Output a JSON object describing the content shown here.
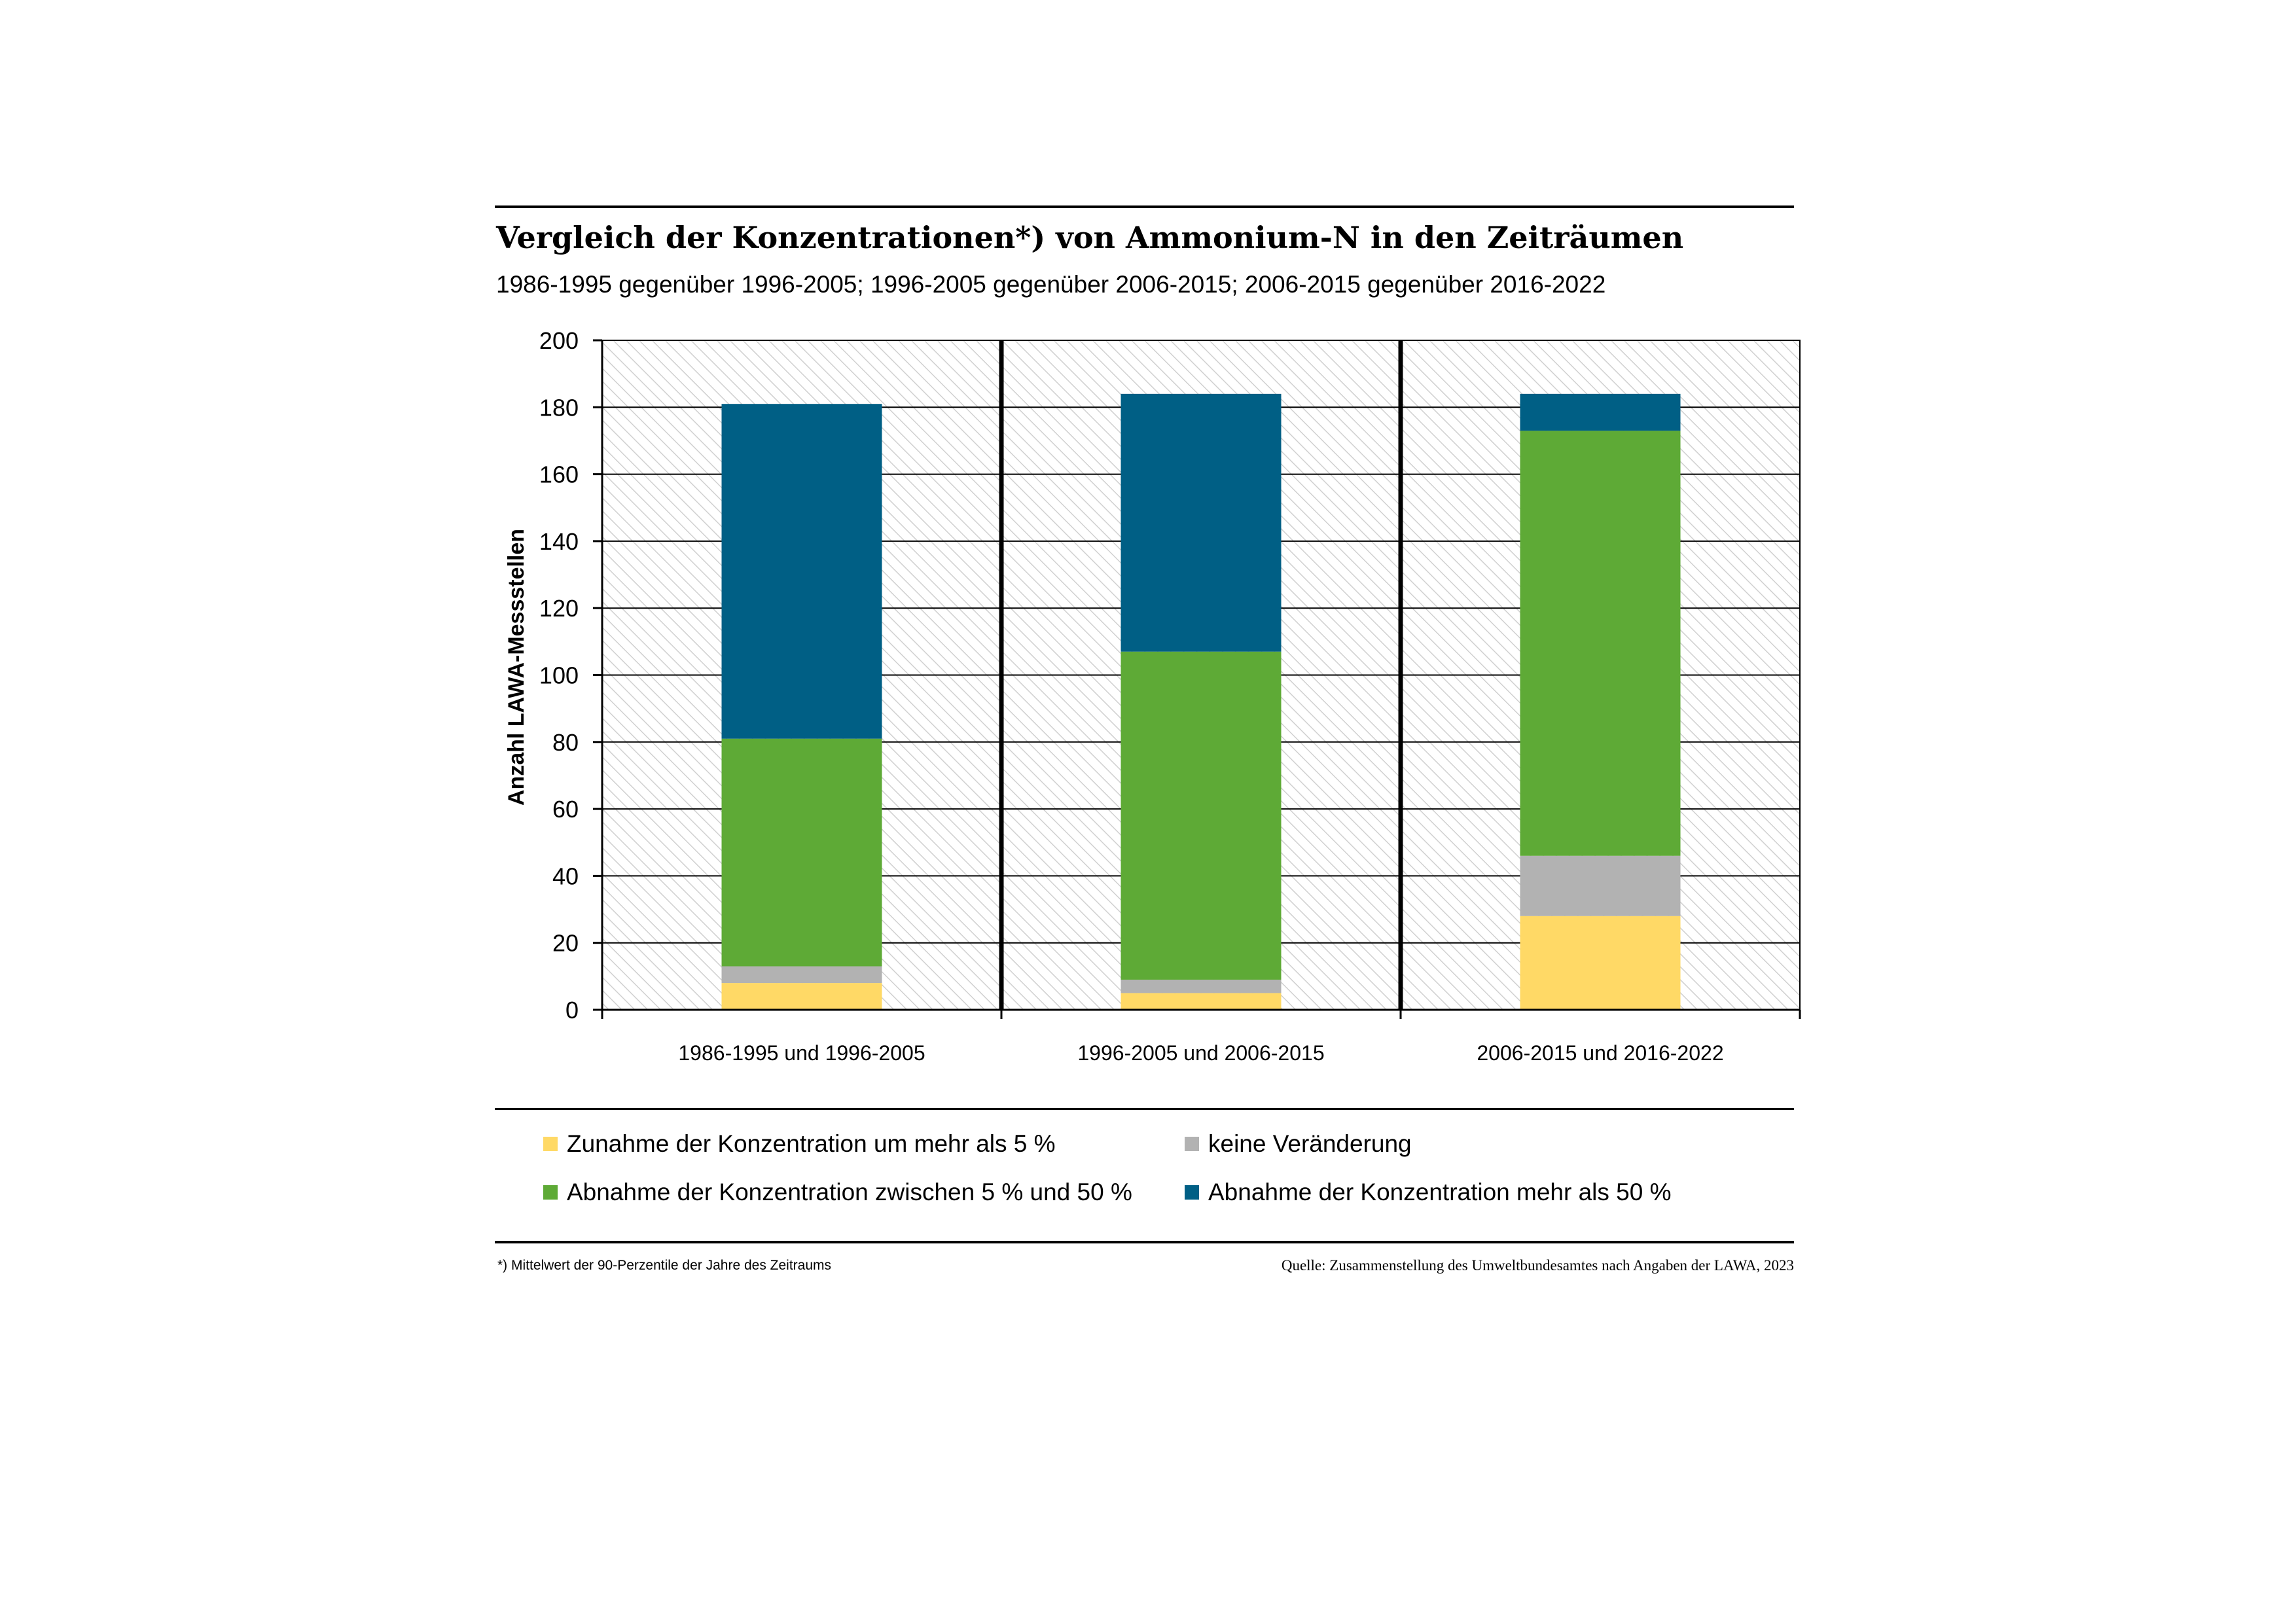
{
  "title": "Vergleich der Konzentrationen*) von Ammonium-N in den Zeiträumen",
  "subtitle": "1986-1995 gegenüber 1996-2005; 1996-2005 gegenüber 2006-2015; 2006-2015 gegenüber 2016-2022",
  "footnote": "*) Mittelwert der 90-Perzentile der Jahre des Zeitraums",
  "source": "Quelle: Zusammenstellung des Umweltbundesamtes nach Angaben der LAWA, 2023",
  "chart_data": {
    "type": "bar",
    "stacked": true,
    "ylabel": "Anzahl LAWA-Messstellen",
    "xlabel": "",
    "ylim": [
      0,
      200
    ],
    "yticks": [
      0,
      20,
      40,
      60,
      80,
      100,
      120,
      140,
      160,
      180,
      200
    ],
    "grid": true,
    "categories": [
      "1986-1995 und 1996-2005",
      "1996-2005 und 2006-2015",
      "2006-2015 und 2016-2022"
    ],
    "series": [
      {
        "name": "Zunahme der Konzentration um mehr als 5 %",
        "color": "#FFD966",
        "values": [
          8,
          5,
          28
        ]
      },
      {
        "name": "keine Veränderung",
        "color": "#B2B2B2",
        "values": [
          5,
          4,
          18
        ]
      },
      {
        "name": "Abnahme der Konzentration zwischen 5 % und 50 %",
        "color": "#5EAA36",
        "values": [
          68,
          98,
          127
        ]
      },
      {
        "name": "Abnahme der Konzentration mehr als 50 %",
        "color": "#005F85",
        "values": [
          100,
          77,
          11
        ]
      }
    ]
  }
}
